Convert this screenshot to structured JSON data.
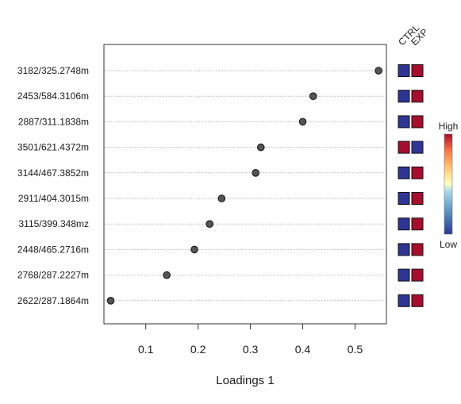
{
  "chart_data": {
    "type": "scatter",
    "title": "",
    "xlabel": "Loadings 1",
    "ylabel": "",
    "xlim": [
      0.02,
      0.56
    ],
    "xticks": [
      "0.1",
      "0.2",
      "0.3",
      "0.4",
      "0.5"
    ],
    "grid": "dotted horizontal lines at each feature",
    "features": [
      {
        "label": "3182/325.2748m",
        "value": 0.545,
        "CTRL": "Low",
        "EXP": "High"
      },
      {
        "label": "2453/584.3106m",
        "value": 0.42,
        "CTRL": "Low",
        "EXP": "High"
      },
      {
        "label": "2887/311.1838m",
        "value": 0.4,
        "CTRL": "Low",
        "EXP": "High"
      },
      {
        "label": "3501/621.4372m",
        "value": 0.32,
        "CTRL": "High",
        "EXP": "Low"
      },
      {
        "label": "3144/467.3852m",
        "value": 0.31,
        "CTRL": "Low",
        "EXP": "High"
      },
      {
        "label": "2911/404.3015m",
        "value": 0.245,
        "CTRL": "Low",
        "EXP": "High"
      },
      {
        "label": "3115/399.348mz",
        "value": 0.222,
        "CTRL": "Low",
        "EXP": "High"
      },
      {
        "label": "2448/465.2716m",
        "value": 0.193,
        "CTRL": "Low",
        "EXP": "High"
      },
      {
        "label": "2768/287.2227m",
        "value": 0.14,
        "CTRL": "Low",
        "EXP": "High"
      },
      {
        "label": "2622/287.1864m",
        "value": 0.033,
        "CTRL": "Low",
        "EXP": "High"
      }
    ],
    "heatmap_columns": [
      "CTRL",
      "EXP"
    ],
    "legend": {
      "high_label": "High",
      "low_label": "Low",
      "high_color": "#a50f2d",
      "low_color": "#313695"
    },
    "colors": {
      "point_fill": "#555555",
      "high": "#a50f2d",
      "low": "#2f3595"
    }
  }
}
